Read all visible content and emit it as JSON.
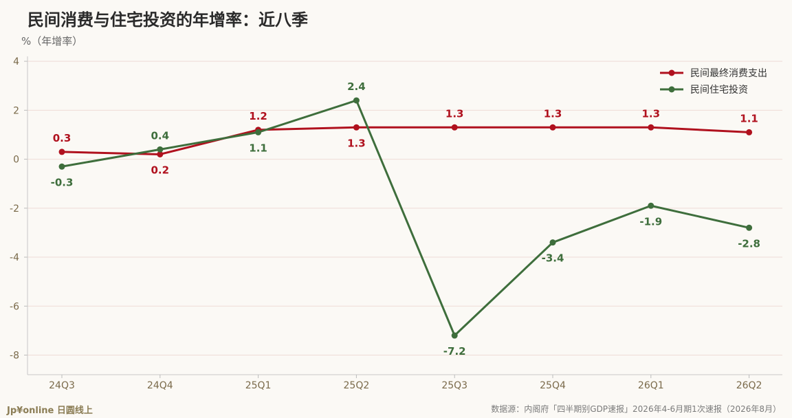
{
  "chart_data": {
    "type": "line",
    "title": "民间消费与住宅投资的年增率：近八季",
    "ylabel": "%（年增率）",
    "xlabel": "",
    "categories": [
      "24Q3",
      "24Q4",
      "25Q1",
      "25Q2",
      "25Q3",
      "25Q4",
      "26Q1",
      "26Q2"
    ],
    "ylim": [
      -8.8,
      4.2
    ],
    "yticks": [
      4,
      2,
      0,
      -2,
      -4,
      -6,
      -8
    ],
    "grid": true,
    "legend": "top-right",
    "series": [
      {
        "name": "民间最终消费支出",
        "color": "#b0111e",
        "values": [
          0.3,
          0.2,
          1.2,
          1.3,
          1.3,
          1.3,
          1.3,
          1.1
        ],
        "labels": [
          "0.3",
          "0.2",
          "1.2",
          "1.3",
          "1.3",
          "1.3",
          "1.3",
          "1.1"
        ]
      },
      {
        "name": "民间住宅投资",
        "color": "#3e6e3c",
        "values": [
          -0.3,
          0.4,
          1.1,
          2.4,
          -7.2,
          -3.4,
          -1.9,
          -2.8
        ],
        "labels": [
          "-0.3",
          "0.4",
          "1.1",
          "2.4",
          "-7.2",
          "-3.4",
          "-1.9",
          "-2.8"
        ]
      }
    ]
  },
  "footer": {
    "brand": "Jp¥online 日圆线上",
    "source": "数据源：内阁府「四半期别GDP速报」2026年4-6月期1次速报（2026年8月）"
  }
}
